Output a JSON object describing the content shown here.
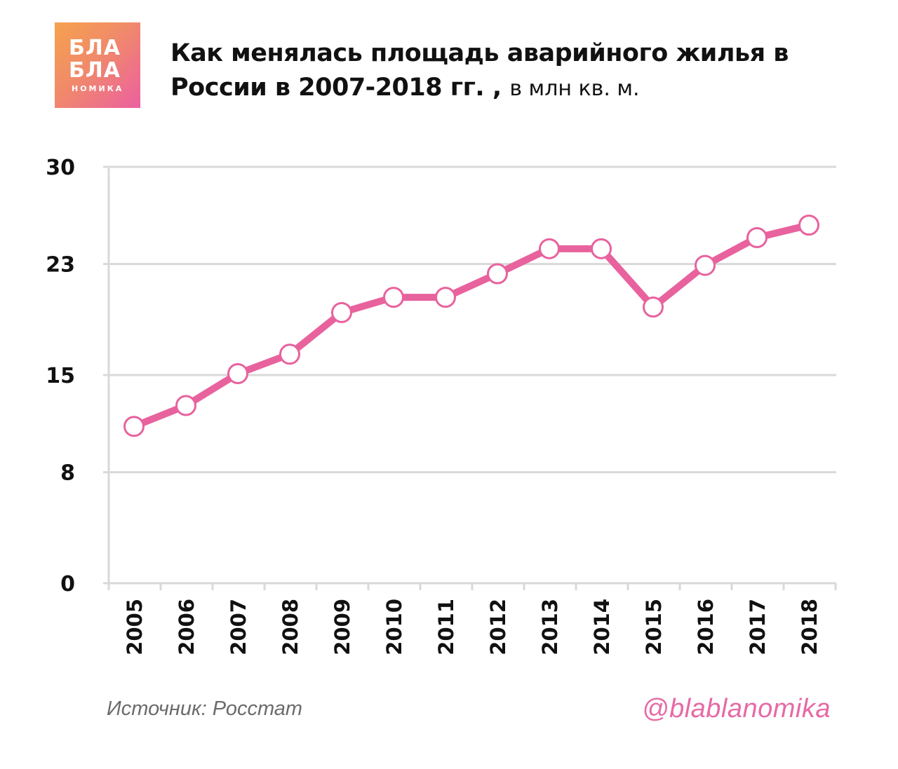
{
  "logo": {
    "line1": "БЛА",
    "line2": "БЛА",
    "line3": "НОМИКА"
  },
  "title": {
    "main": "Как менялась площадь аварийного жилья в России в 2007-2018 гг. ,",
    "unit": "в млн кв. м."
  },
  "footer": {
    "source": "Источник: Росстат",
    "handle": "@blablanomika"
  },
  "colors": {
    "line": "#e8629e",
    "grid": "#d9d9d9",
    "marker_fill": "#ffffff"
  },
  "chart_data": {
    "type": "line",
    "x": [
      "2005",
      "2006",
      "2007",
      "2008",
      "2009",
      "2010",
      "2011",
      "2012",
      "2013",
      "2014",
      "2015",
      "2016",
      "2017",
      "2018"
    ],
    "series": [
      {
        "values": [
          11.3,
          12.8,
          15.1,
          16.5,
          19.5,
          20.6,
          20.6,
          22.3,
          24.1,
          24.1,
          19.9,
          22.9,
          24.9,
          25.8
        ]
      }
    ],
    "yticks": [
      "0",
      "8",
      "15",
      "23",
      "30"
    ],
    "ylim": [
      0,
      30
    ],
    "grid": true,
    "legend": "none"
  }
}
